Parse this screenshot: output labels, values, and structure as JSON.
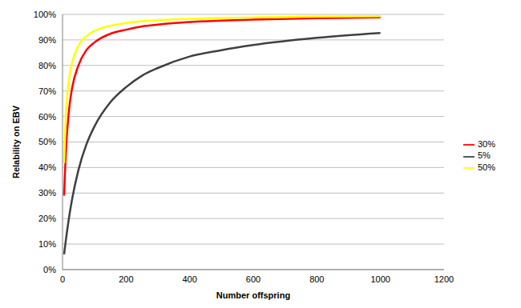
{
  "chart_data": {
    "type": "line",
    "xlabel": "Number offspring",
    "ylabel": "Relability on EBV",
    "x": [
      5,
      10,
      20,
      30,
      50,
      75,
      100,
      150,
      200,
      250,
      300,
      400,
      500,
      600,
      800,
      1000
    ],
    "series": [
      {
        "name": "5%",
        "color": "#404040",
        "values": [
          6,
          11,
          20,
          27.5,
          39,
          49,
          56,
          65.5,
          71.5,
          76,
          79,
          83.5,
          86,
          88,
          90.8,
          92.7
        ]
      },
      {
        "name": "30%",
        "color": "#ff0000",
        "values": [
          29,
          45,
          62,
          71,
          80,
          86,
          89,
          92.4,
          94,
          95.3,
          96,
          97,
          97.6,
          98,
          98.5,
          98.8
        ]
      },
      {
        "name": "50%",
        "color": "#ffff00",
        "values": [
          41.7,
          59,
          74,
          81,
          87.7,
          91.5,
          93.5,
          95.5,
          96.6,
          97.3,
          97.7,
          98.3,
          98.6,
          98.8,
          99.1,
          99.3
        ]
      }
    ],
    "xlim": [
      0,
      1200
    ],
    "xticks": [
      0,
      200,
      400,
      600,
      800,
      1000,
      1200
    ],
    "ylim": [
      0,
      100
    ],
    "yticks": [
      {
        "value": 0,
        "label": "0%"
      },
      {
        "value": 10,
        "label": "10%"
      },
      {
        "value": 20,
        "label": "20%"
      },
      {
        "value": 30,
        "label": "30%"
      },
      {
        "value": 40,
        "label": "40%"
      },
      {
        "value": 50,
        "label": "50%"
      },
      {
        "value": 60,
        "label": "60%"
      },
      {
        "value": 70,
        "label": "70%"
      },
      {
        "value": 80,
        "label": "80%"
      },
      {
        "value": 90,
        "label": "90%"
      },
      {
        "value": 100,
        "label": "100%"
      }
    ],
    "grid": true,
    "legend": "right"
  }
}
